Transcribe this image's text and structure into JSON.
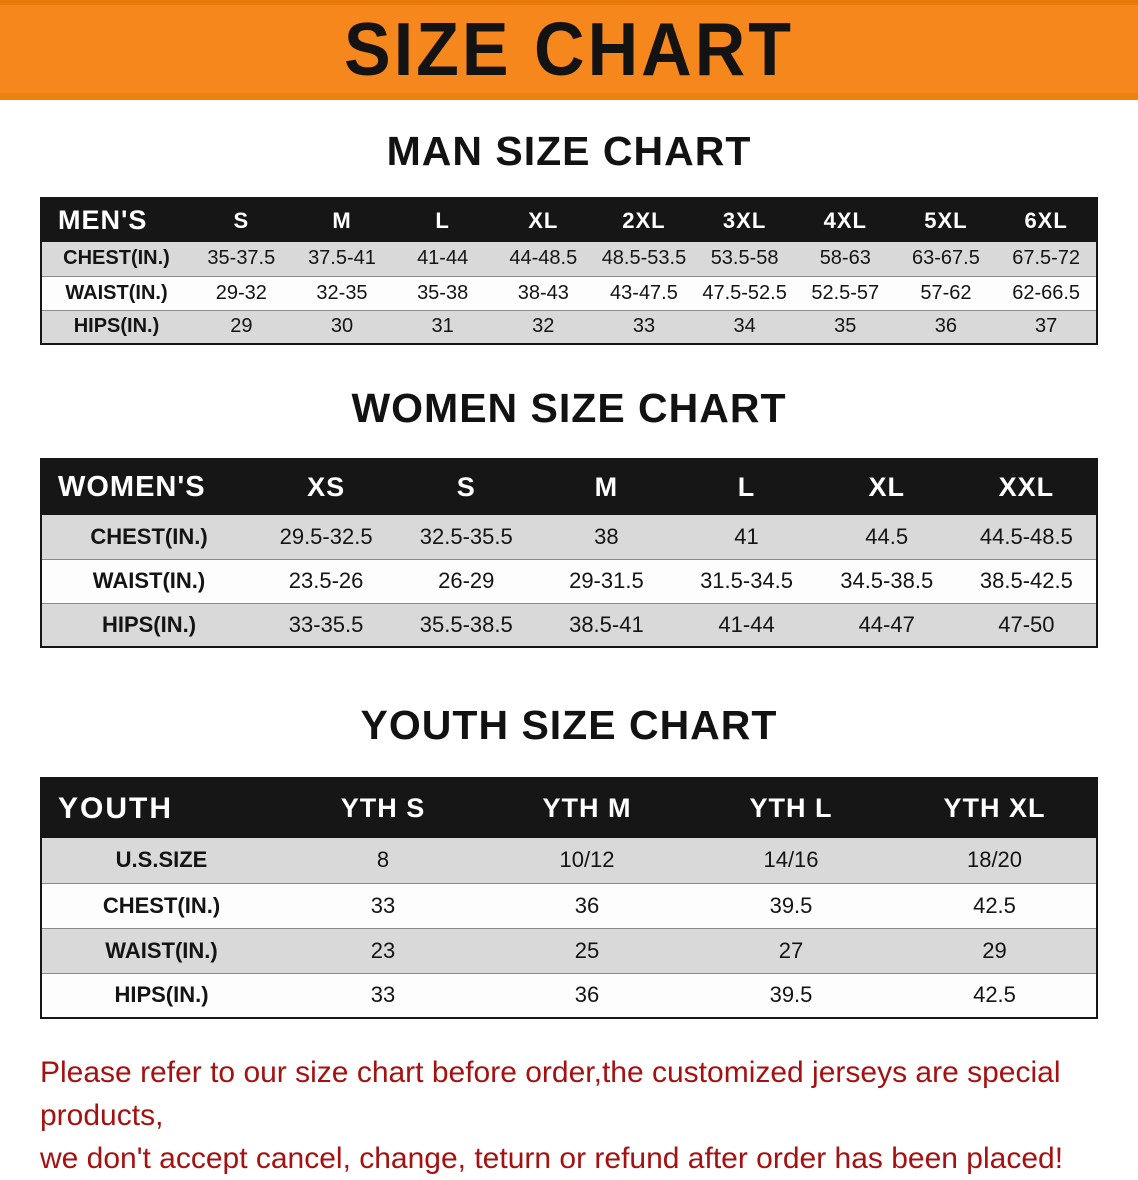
{
  "banner": {
    "title": "SIZE CHART"
  },
  "colors": {
    "banner_bg": "#F6871D",
    "table_header_bg": "#161616",
    "row_alt_gray": "#D9D9D9",
    "footer_text": "#A51111"
  },
  "sections": [
    {
      "heading": "MAN SIZE CHART",
      "table": {
        "header_label": "MEN'S",
        "columns": [
          "S",
          "M",
          "L",
          "XL",
          "2XL",
          "3XL",
          "4XL",
          "5XL",
          "6XL"
        ],
        "rows": [
          {
            "label": "CHEST(IN.)",
            "values": [
              "35-37.5",
              "37.5-41",
              "41-44",
              "44-48.5",
              "48.5-53.5",
              "53.5-58",
              "58-63",
              "63-67.5",
              "67.5-72"
            ]
          },
          {
            "label": "WAIST(IN.)",
            "values": [
              "29-32",
              "32-35",
              "35-38",
              "38-43",
              "43-47.5",
              "47.5-52.5",
              "52.5-57",
              "57-62",
              "62-66.5"
            ]
          },
          {
            "label": "HIPS(IN.)",
            "values": [
              "29",
              "30",
              "31",
              "32",
              "33",
              "34",
              "35",
              "36",
              "37"
            ]
          }
        ]
      }
    },
    {
      "heading": "WOMEN SIZE CHART",
      "table": {
        "header_label": "WOMEN'S",
        "columns": [
          "XS",
          "S",
          "M",
          "L",
          "XL",
          "XXL"
        ],
        "rows": [
          {
            "label": "CHEST(IN.)",
            "values": [
              "29.5-32.5",
              "32.5-35.5",
              "38",
              "41",
              "44.5",
              "44.5-48.5"
            ]
          },
          {
            "label": "WAIST(IN.)",
            "values": [
              "23.5-26",
              "26-29",
              "29-31.5",
              "31.5-34.5",
              "34.5-38.5",
              "38.5-42.5"
            ]
          },
          {
            "label": "HIPS(IN.)",
            "values": [
              "33-35.5",
              "35.5-38.5",
              "38.5-41",
              "41-44",
              "44-47",
              "47-50"
            ]
          }
        ]
      }
    },
    {
      "heading": "YOUTH SIZE CHART",
      "table": {
        "header_label": "YOUTH",
        "columns": [
          "YTH S",
          "YTH M",
          "YTH L",
          "YTH XL"
        ],
        "rows": [
          {
            "label": "U.S.SIZE",
            "values": [
              "8",
              "10/12",
              "14/16",
              "18/20"
            ]
          },
          {
            "label": "CHEST(IN.)",
            "values": [
              "33",
              "36",
              "39.5",
              "42.5"
            ]
          },
          {
            "label": "WAIST(IN.)",
            "values": [
              "23",
              "25",
              "27",
              "29"
            ]
          },
          {
            "label": "HIPS(IN.)",
            "values": [
              "33",
              "36",
              "39.5",
              "42.5"
            ]
          }
        ]
      }
    }
  ],
  "footer": {
    "line1": "Please refer to our size chart before order,the customized jerseys are special products,",
    "line2": "we don't accept cancel, change, teturn or refund after order has been placed!"
  }
}
